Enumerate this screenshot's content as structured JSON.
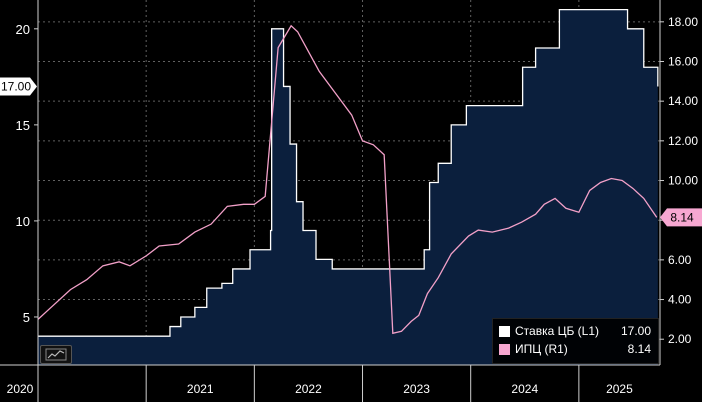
{
  "colors": {
    "background": "#000000",
    "area_fill": "#0b1f3d",
    "key_rate_line": "#ffffff",
    "cpi_line": "#f2a0c8",
    "cpi_badge": "#f7a7d1",
    "grid": "#7a7a7a",
    "axis_text": "#ffffff"
  },
  "icons": {
    "chart_toggle": "line-chart-icon"
  },
  "legend": {
    "key_rate": {
      "name": "Ставка ЦБ  (L1)",
      "value": "17.00"
    },
    "cpi": {
      "name": "ИПЦ  (R1)",
      "value": "8.14"
    }
  },
  "chart_data": {
    "type": "line",
    "title": "",
    "x_range": [
      2020.0,
      2025.75
    ],
    "x_tick_labels": [
      "2020",
      "2021",
      "2022",
      "2023",
      "2024",
      "2025"
    ],
    "x_tick_positions": [
      2020,
      2021,
      2022,
      2023,
      2024,
      2025
    ],
    "left_axis": {
      "ylim": [
        2.5,
        21.5
      ],
      "ticks": [
        5,
        10,
        15,
        20
      ],
      "labels": [
        "5",
        "10",
        "15",
        "20"
      ]
    },
    "right_axis": {
      "ylim": [
        0.7,
        19.1
      ],
      "ticks": [
        2,
        4,
        6,
        8,
        10,
        12,
        14,
        16,
        18
      ],
      "labels": [
        "2.00",
        "4.00",
        "6.00",
        "8.00",
        "10.00",
        "12.00",
        "14.00",
        "16.00",
        "18.00"
      ]
    },
    "series": [
      {
        "name": "Ставка ЦБ (L1)",
        "axis": "left",
        "style": "step-area",
        "last_value": 17.0,
        "last_value_label": "17.00",
        "points": [
          [
            2020.0,
            4.0
          ],
          [
            2021.22,
            4.5
          ],
          [
            2021.32,
            5.0
          ],
          [
            2021.45,
            5.5
          ],
          [
            2021.56,
            6.5
          ],
          [
            2021.7,
            6.75
          ],
          [
            2021.8,
            7.5
          ],
          [
            2021.96,
            8.5
          ],
          [
            2022.15,
            9.5
          ],
          [
            2022.16,
            20.0
          ],
          [
            2022.27,
            17.0
          ],
          [
            2022.33,
            14.0
          ],
          [
            2022.39,
            11.0
          ],
          [
            2022.45,
            9.5
          ],
          [
            2022.57,
            8.0
          ],
          [
            2022.72,
            7.5
          ],
          [
            2023.57,
            8.5
          ],
          [
            2023.62,
            12.0
          ],
          [
            2023.7,
            13.0
          ],
          [
            2023.82,
            15.0
          ],
          [
            2023.96,
            16.0
          ],
          [
            2024.48,
            18.0
          ],
          [
            2024.6,
            19.0
          ],
          [
            2024.82,
            21.0
          ],
          [
            2025.45,
            20.0
          ],
          [
            2025.6,
            18.0
          ],
          [
            2025.73,
            17.0
          ]
        ]
      },
      {
        "name": "ИПЦ (R1)",
        "axis": "right",
        "style": "line",
        "last_value": 8.14,
        "last_value_label": "8.14",
        "points": [
          [
            2020.0,
            3.0
          ],
          [
            2020.1,
            3.5
          ],
          [
            2020.3,
            4.5
          ],
          [
            2020.45,
            5.0
          ],
          [
            2020.6,
            5.7
          ],
          [
            2020.75,
            5.9
          ],
          [
            2020.85,
            5.7
          ],
          [
            2021.0,
            6.2
          ],
          [
            2021.12,
            6.7
          ],
          [
            2021.3,
            6.8
          ],
          [
            2021.45,
            7.4
          ],
          [
            2021.6,
            7.8
          ],
          [
            2021.75,
            8.7
          ],
          [
            2021.9,
            8.8
          ],
          [
            2022.0,
            8.8
          ],
          [
            2022.1,
            9.2
          ],
          [
            2022.22,
            16.7
          ],
          [
            2022.34,
            17.8
          ],
          [
            2022.4,
            17.5
          ],
          [
            2022.5,
            16.5
          ],
          [
            2022.6,
            15.5
          ],
          [
            2022.75,
            14.4
          ],
          [
            2022.9,
            13.3
          ],
          [
            2023.0,
            12.0
          ],
          [
            2023.1,
            11.8
          ],
          [
            2023.2,
            11.3
          ],
          [
            2023.28,
            2.3
          ],
          [
            2023.36,
            2.4
          ],
          [
            2023.45,
            2.9
          ],
          [
            2023.52,
            3.2
          ],
          [
            2023.6,
            4.3
          ],
          [
            2023.7,
            5.1
          ],
          [
            2023.82,
            6.3
          ],
          [
            2023.98,
            7.2
          ],
          [
            2024.07,
            7.5
          ],
          [
            2024.2,
            7.4
          ],
          [
            2024.35,
            7.6
          ],
          [
            2024.47,
            7.9
          ],
          [
            2024.6,
            8.3
          ],
          [
            2024.68,
            8.8
          ],
          [
            2024.78,
            9.1
          ],
          [
            2024.88,
            8.6
          ],
          [
            2025.0,
            8.4
          ],
          [
            2025.1,
            9.5
          ],
          [
            2025.2,
            9.9
          ],
          [
            2025.3,
            10.1
          ],
          [
            2025.4,
            10.0
          ],
          [
            2025.5,
            9.6
          ],
          [
            2025.6,
            9.1
          ],
          [
            2025.72,
            8.14
          ]
        ]
      }
    ]
  }
}
